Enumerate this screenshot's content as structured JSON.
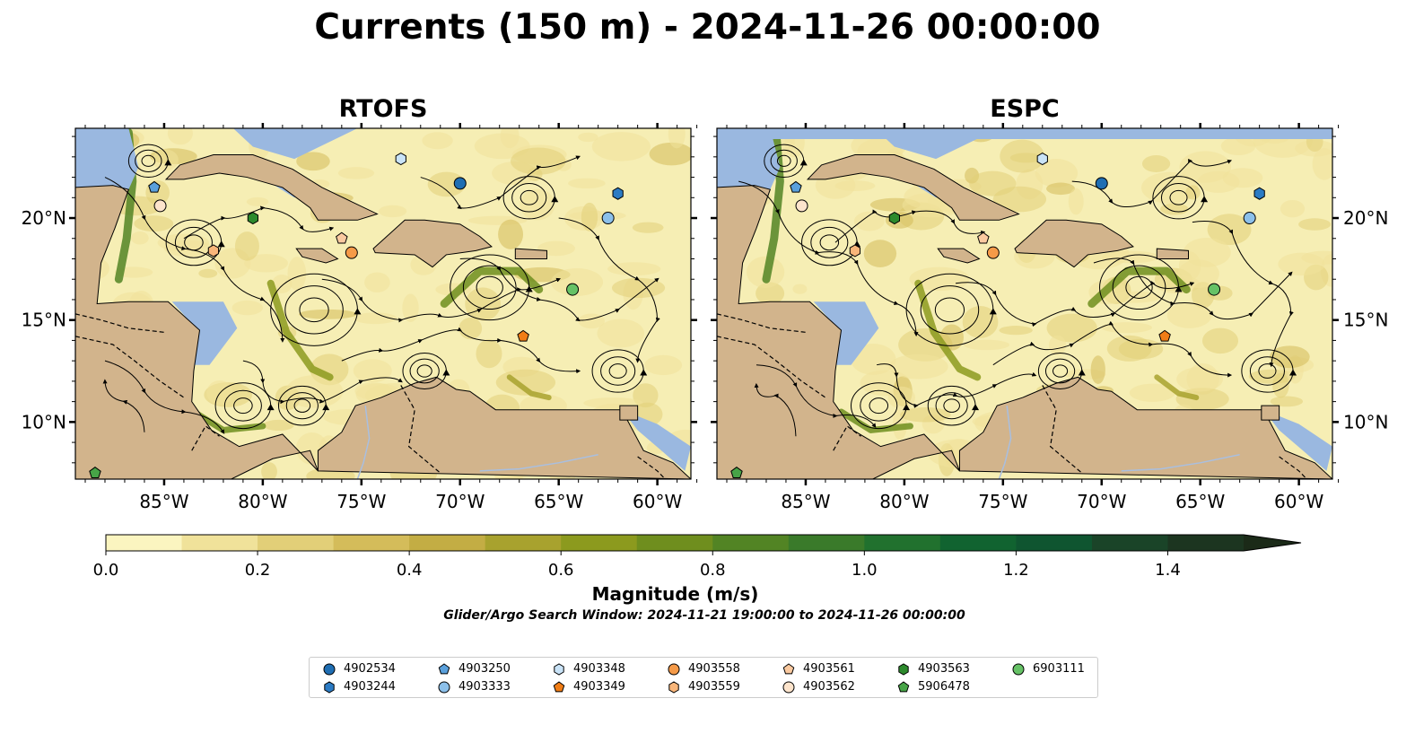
{
  "title": "Currents (150 m) - 2024-11-26 00:00:00",
  "panels": [
    {
      "name": "RTOFS"
    },
    {
      "name": "ESPC"
    }
  ],
  "axes": {
    "lon_labels": [
      "85°W",
      "80°W",
      "75°W",
      "70°W",
      "65°W",
      "60°W"
    ],
    "lon_values": [
      -85,
      -80,
      -75,
      -70,
      -65,
      -60
    ],
    "lat_labels": [
      "20°N",
      "15°N",
      "10°N"
    ],
    "lat_values": [
      20,
      15,
      10
    ],
    "lon_range": [
      -89.5,
      -58.3
    ],
    "lat_range": [
      7.2,
      24.4
    ]
  },
  "colorbar": {
    "label": "Magnitude (m/s)",
    "tick_labels": [
      "0.0",
      "0.2",
      "0.4",
      "0.6",
      "0.8",
      "1.0",
      "1.2",
      "1.4"
    ],
    "tick_values": [
      0.0,
      0.2,
      0.4,
      0.6,
      0.8,
      1.0,
      1.2,
      1.4
    ],
    "range": [
      0,
      1.5
    ],
    "extend": "max",
    "colors": [
      "#fbf5c0",
      "#f0e29a",
      "#e2cf78",
      "#d4bc5a",
      "#c3ad44",
      "#a8a22e",
      "#8c9a1e",
      "#6f8e1e",
      "#528424",
      "#3a7a2a",
      "#21712e",
      "#116330",
      "#0f5530",
      "#1a4428",
      "#1c3520",
      "#1b2a18"
    ]
  },
  "search_window": "Glider/Argo Search Window: 2024-11-21 19:00:00 to 2024-11-26 00:00:00",
  "legend": [
    {
      "id": "4902534",
      "marker": "circle",
      "color": "#1f6eb3"
    },
    {
      "id": "4903244",
      "marker": "hexagon",
      "color": "#2b7bc4"
    },
    {
      "id": "4903250",
      "marker": "pentagon",
      "color": "#5aa0dc"
    },
    {
      "id": "4903333",
      "marker": "circle",
      "color": "#8cc0ea"
    },
    {
      "id": "4903348",
      "marker": "hexagon",
      "color": "#c9e3f7"
    },
    {
      "id": "4903349",
      "marker": "pentagon",
      "color": "#f07d16"
    },
    {
      "id": "4903558",
      "marker": "circle",
      "color": "#f59a48"
    },
    {
      "id": "4903559",
      "marker": "hexagon",
      "color": "#f9b67a"
    },
    {
      "id": "4903561",
      "marker": "pentagon",
      "color": "#fbcaa0"
    },
    {
      "id": "4903562",
      "marker": "circle",
      "color": "#fde4cc"
    },
    {
      "id": "4903563",
      "marker": "hexagon",
      "color": "#2d8a2d"
    },
    {
      "id": "5906478",
      "marker": "pentagon",
      "color": "#47a447"
    },
    {
      "id": "6903111",
      "marker": "circle",
      "color": "#66c266"
    }
  ],
  "floats": [
    {
      "id": "4902534",
      "lon": -70.0,
      "lat": 21.7
    },
    {
      "id": "4903244",
      "lon": -62.0,
      "lat": 21.2
    },
    {
      "id": "4903250",
      "lon": -85.5,
      "lat": 21.5
    },
    {
      "id": "4903333",
      "lon": -62.5,
      "lat": 20.0
    },
    {
      "id": "4903348",
      "lon": -73.0,
      "lat": 22.9
    },
    {
      "id": "4903349",
      "lon": -66.8,
      "lat": 14.2
    },
    {
      "id": "4903558",
      "lon": -75.5,
      "lat": 18.3
    },
    {
      "id": "4903559",
      "lon": -82.5,
      "lat": 18.4
    },
    {
      "id": "4903561",
      "lon": -76.0,
      "lat": 19.0
    },
    {
      "id": "4903562",
      "lon": -85.2,
      "lat": 20.6
    },
    {
      "id": "4903563",
      "lon": -80.5,
      "lat": 20.0
    },
    {
      "id": "5906478",
      "lon": -88.5,
      "lat": 7.5
    },
    {
      "id": "6903111",
      "lon": -64.3,
      "lat": 16.5
    }
  ],
  "colors": {
    "ocean_base": "#f6eeb4",
    "land": "#d2b48c",
    "shelf_water": "#9ab8e0",
    "coast": "#000000"
  }
}
